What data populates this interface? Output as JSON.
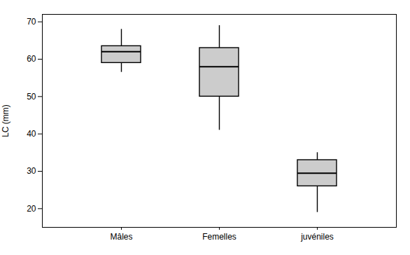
{
  "chart_data": {
    "type": "box",
    "categories": [
      "Mâles",
      "Femelles",
      "juvéniles"
    ],
    "boxes": [
      {
        "whisker_low": 56.5,
        "q1": 59,
        "median": 62,
        "q3": 63.5,
        "whisker_high": 68
      },
      {
        "whisker_low": 41,
        "q1": 50,
        "median": 58,
        "q3": 63,
        "whisker_high": 69
      },
      {
        "whisker_low": 19,
        "q1": 26,
        "median": 29.5,
        "q3": 33,
        "whisker_high": 35
      }
    ],
    "ylabel": "LC (mm)",
    "ylim": [
      15,
      72
    ],
    "yticks": [
      20,
      30,
      40,
      50,
      60,
      70
    ],
    "color": "#cccccc",
    "grid": false
  }
}
